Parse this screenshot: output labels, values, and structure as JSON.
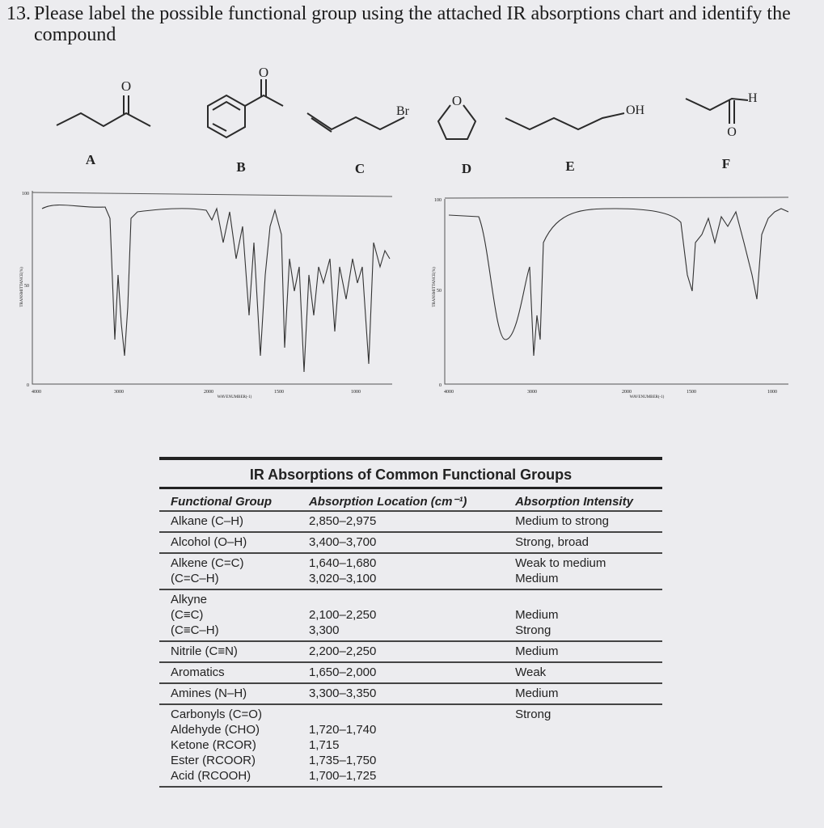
{
  "question": {
    "number": "13.",
    "text": "Please label the possible functional group using the attached IR absorptions chart and identify the compound"
  },
  "compounds": [
    {
      "label": "A",
      "atoms": [
        "O"
      ]
    },
    {
      "label": "B",
      "atoms": [
        "O"
      ]
    },
    {
      "label": "C",
      "atoms": [
        "Br"
      ]
    },
    {
      "label": "D",
      "atoms": [
        "O"
      ]
    },
    {
      "label": "E",
      "atoms": [
        "OH"
      ]
    },
    {
      "label": "F",
      "atoms": [
        "H",
        "O"
      ]
    }
  ],
  "spectra": [
    {
      "ylabel": "TRANSMITTANCE(%)",
      "xlabel": "WAVENUMBER(-1)",
      "yticks": [
        "100",
        "50",
        "0"
      ],
      "xticks": [
        "4000",
        "3000",
        "2000",
        "1500",
        "1000"
      ]
    },
    {
      "ylabel": "TRANSMITTANCE(%)",
      "xlabel": "WAVENUMBER(-1)",
      "yticks": [
        "100",
        "50",
        "0"
      ],
      "xticks": [
        "4000",
        "3000",
        "2000",
        "1500",
        "1000"
      ]
    }
  ],
  "table": {
    "title": "IR Absorptions of Common Functional Groups",
    "headers": [
      "Functional Group",
      "Absorption Location (cm⁻¹)",
      "Absorption Intensity"
    ],
    "rows": [
      [
        [
          "Alkane (C–H)"
        ],
        [
          "2,850–2,975"
        ],
        [
          "Medium to strong"
        ]
      ],
      [
        [
          "Alcohol (O–H)"
        ],
        [
          "3,400–3,700"
        ],
        [
          "Strong, broad"
        ]
      ],
      [
        [
          "Alkene (C=C)",
          "(C=C–H)"
        ],
        [
          "1,640–1,680",
          "3,020–3,100"
        ],
        [
          "Weak to medium",
          "Medium"
        ]
      ],
      [
        [
          "Alkyne",
          "(C≡C)",
          "(C≡C–H)"
        ],
        [
          "2,100–2,250",
          "3,300"
        ],
        [
          "Medium",
          "Strong"
        ]
      ],
      [
        [
          "Nitrile (C≡N)"
        ],
        [
          "2,200–2,250"
        ],
        [
          "Medium"
        ]
      ],
      [
        [
          "Aromatics"
        ],
        [
          "1,650–2,000"
        ],
        [
          "Weak"
        ]
      ],
      [
        [
          "Amines (N–H)"
        ],
        [
          "3,300–3,350"
        ],
        [
          "Medium"
        ]
      ],
      [
        [
          "Carbonyls (C=O)",
          "Aldehyde (CHO)",
          "Ketone (RCOR)",
          "Ester (RCOOR)",
          "Acid (RCOOH)"
        ],
        [
          "1,720–1,740",
          "1,715",
          "1,735–1,750",
          "1,700–1,725"
        ],
        [
          "Strong"
        ]
      ]
    ]
  }
}
